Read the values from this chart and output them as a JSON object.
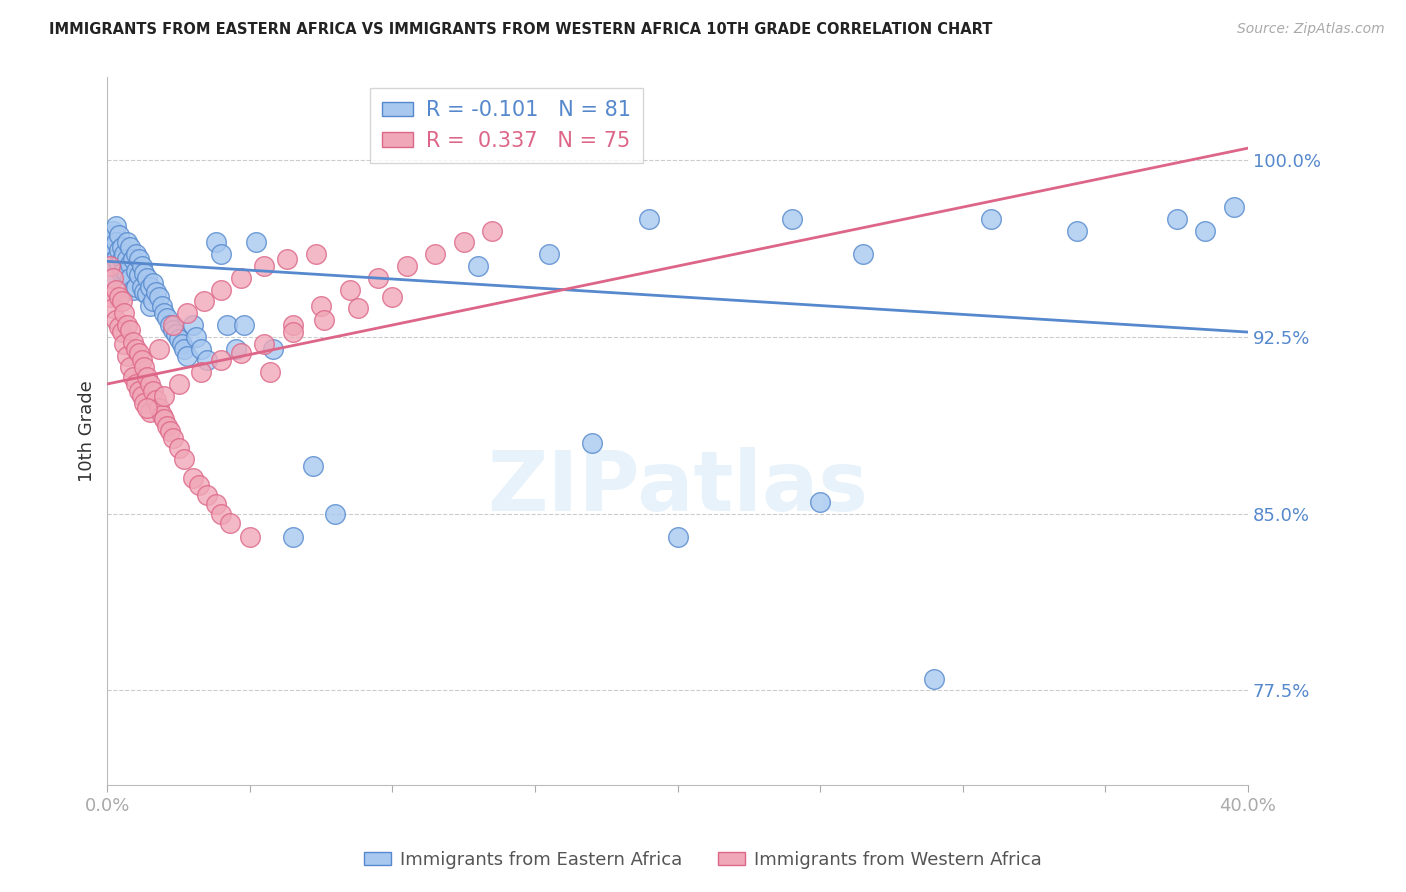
{
  "title": "IMMIGRANTS FROM EASTERN AFRICA VS IMMIGRANTS FROM WESTERN AFRICA 10TH GRADE CORRELATION CHART",
  "source": "Source: ZipAtlas.com",
  "ylabel": "10th Grade",
  "ytick_labels": [
    "77.5%",
    "85.0%",
    "92.5%",
    "100.0%"
  ],
  "ytick_values": [
    0.775,
    0.85,
    0.925,
    1.0
  ],
  "xlim": [
    0.0,
    0.4
  ],
  "ylim": [
    0.735,
    1.035
  ],
  "legend_r_blue": "-0.101",
  "legend_n_blue": "81",
  "legend_r_pink": "0.337",
  "legend_n_pink": "75",
  "blue_fill": "#a8c8f0",
  "pink_fill": "#f0a8b8",
  "blue_edge": "#5588cc",
  "pink_edge": "#dd6688",
  "line_blue": "#5588cc",
  "line_pink": "#dd6688",
  "title_color": "#222222",
  "axis_tick_color": "#5588cc",
  "background_color": "#ffffff",
  "watermark_text": "ZIPatlas",
  "blue_line_x0": 0.0,
  "blue_line_x1": 0.4,
  "blue_line_y0": 0.957,
  "blue_line_y1": 0.927,
  "pink_line_x0": 0.0,
  "pink_line_x1": 0.4,
  "pink_line_y0": 0.905,
  "pink_line_y1": 1.005,
  "blue_x": [
    0.001,
    0.001,
    0.001,
    0.002,
    0.002,
    0.002,
    0.002,
    0.003,
    0.003,
    0.003,
    0.004,
    0.004,
    0.004,
    0.005,
    0.005,
    0.005,
    0.006,
    0.006,
    0.007,
    0.007,
    0.007,
    0.008,
    0.008,
    0.008,
    0.009,
    0.009,
    0.01,
    0.01,
    0.01,
    0.011,
    0.011,
    0.012,
    0.012,
    0.013,
    0.013,
    0.014,
    0.014,
    0.015,
    0.015,
    0.016,
    0.016,
    0.017,
    0.018,
    0.019,
    0.02,
    0.021,
    0.022,
    0.023,
    0.024,
    0.025,
    0.026,
    0.027,
    0.028,
    0.03,
    0.031,
    0.033,
    0.035,
    0.038,
    0.04,
    0.042,
    0.045,
    0.048,
    0.052,
    0.058,
    0.065,
    0.072,
    0.08,
    0.13,
    0.155,
    0.19,
    0.24,
    0.265,
    0.31,
    0.34,
    0.375,
    0.385,
    0.395,
    0.17,
    0.2,
    0.25,
    0.29
  ],
  "blue_y": [
    0.968,
    0.96,
    0.955,
    0.97,
    0.963,
    0.957,
    0.95,
    0.972,
    0.965,
    0.958,
    0.968,
    0.962,
    0.956,
    0.963,
    0.958,
    0.952,
    0.96,
    0.953,
    0.965,
    0.958,
    0.952,
    0.963,
    0.956,
    0.95,
    0.958,
    0.945,
    0.96,
    0.953,
    0.946,
    0.958,
    0.951,
    0.955,
    0.946,
    0.952,
    0.944,
    0.95,
    0.943,
    0.946,
    0.938,
    0.948,
    0.94,
    0.944,
    0.942,
    0.938,
    0.935,
    0.933,
    0.93,
    0.928,
    0.926,
    0.924,
    0.922,
    0.92,
    0.917,
    0.93,
    0.925,
    0.92,
    0.915,
    0.965,
    0.96,
    0.93,
    0.92,
    0.93,
    0.965,
    0.92,
    0.84,
    0.87,
    0.85,
    0.955,
    0.96,
    0.975,
    0.975,
    0.96,
    0.975,
    0.97,
    0.975,
    0.97,
    0.98,
    0.88,
    0.84,
    0.855,
    0.78
  ],
  "pink_x": [
    0.001,
    0.001,
    0.002,
    0.002,
    0.003,
    0.003,
    0.004,
    0.004,
    0.005,
    0.005,
    0.006,
    0.006,
    0.007,
    0.007,
    0.008,
    0.008,
    0.009,
    0.009,
    0.01,
    0.01,
    0.011,
    0.011,
    0.012,
    0.012,
    0.013,
    0.013,
    0.014,
    0.015,
    0.015,
    0.016,
    0.017,
    0.018,
    0.019,
    0.02,
    0.021,
    0.022,
    0.023,
    0.025,
    0.027,
    0.03,
    0.032,
    0.035,
    0.038,
    0.04,
    0.043,
    0.05,
    0.057,
    0.065,
    0.075,
    0.085,
    0.095,
    0.105,
    0.115,
    0.125,
    0.135,
    0.018,
    0.023,
    0.028,
    0.034,
    0.04,
    0.047,
    0.055,
    0.063,
    0.073,
    0.014,
    0.02,
    0.025,
    0.033,
    0.04,
    0.047,
    0.055,
    0.065,
    0.076,
    0.088,
    0.1
  ],
  "pink_y": [
    0.955,
    0.942,
    0.95,
    0.937,
    0.945,
    0.932,
    0.942,
    0.929,
    0.94,
    0.927,
    0.935,
    0.922,
    0.93,
    0.917,
    0.928,
    0.912,
    0.923,
    0.908,
    0.92,
    0.905,
    0.918,
    0.902,
    0.915,
    0.9,
    0.912,
    0.897,
    0.908,
    0.905,
    0.893,
    0.902,
    0.898,
    0.895,
    0.892,
    0.89,
    0.887,
    0.885,
    0.882,
    0.878,
    0.873,
    0.865,
    0.862,
    0.858,
    0.854,
    0.85,
    0.846,
    0.84,
    0.91,
    0.93,
    0.938,
    0.945,
    0.95,
    0.955,
    0.96,
    0.965,
    0.97,
    0.92,
    0.93,
    0.935,
    0.94,
    0.945,
    0.95,
    0.955,
    0.958,
    0.96,
    0.895,
    0.9,
    0.905,
    0.91,
    0.915,
    0.918,
    0.922,
    0.927,
    0.932,
    0.937,
    0.942
  ]
}
